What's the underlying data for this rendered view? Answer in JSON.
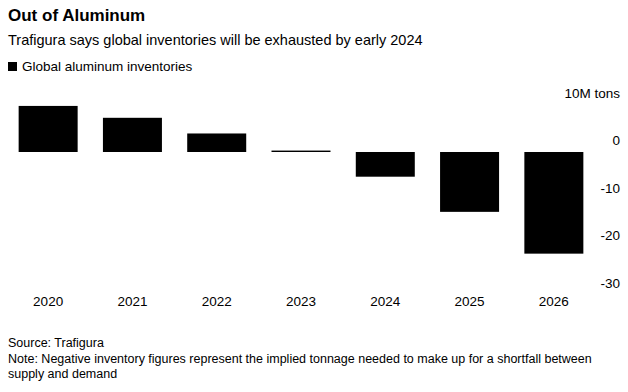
{
  "chart_data": {
    "type": "bar",
    "title": "Out of Aluminum",
    "subtitle": "Trafigura says global inventories will be exhausted by early 2024",
    "categories": [
      "2020",
      "2021",
      "2022",
      "2023",
      "2024",
      "2025",
      "2026"
    ],
    "series": [
      {
        "name": "Global aluminum inventories",
        "color": "#000000",
        "values": [
          9.7,
          7.2,
          3.9,
          0.3,
          -5.2,
          -12.6,
          -21.4
        ]
      }
    ],
    "ylim": [
      -30,
      10
    ],
    "yticks": [
      {
        "value": 10,
        "label": "10M tons"
      },
      0,
      -10,
      -20,
      -30
    ],
    "grid": false,
    "legend": "top-left",
    "source": "Source: Trafigura",
    "note": "Note: Negative inventory figures represent the implied tonnage needed to make up for a shortfall between supply and demand"
  }
}
